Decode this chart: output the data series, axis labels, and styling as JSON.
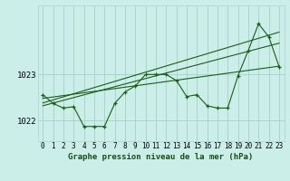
{
  "title": "Graphe pression niveau de la mer (hPa)",
  "bg_color": "#cceee8",
  "grid_color": "#aad4ce",
  "line_color": "#1a5c1a",
  "x_labels": [
    "0",
    "1",
    "2",
    "3",
    "4",
    "5",
    "6",
    "7",
    "8",
    "9",
    "10",
    "11",
    "12",
    "13",
    "14",
    "15",
    "16",
    "17",
    "18",
    "19",
    "20",
    "21",
    "22",
    "23"
  ],
  "y_ticks": [
    1022,
    1023
  ],
  "y_min": 1021.55,
  "y_max": 1024.5,
  "main_line": [
    1022.56,
    1022.37,
    1022.27,
    1022.3,
    1021.87,
    1021.87,
    1021.87,
    1022.37,
    1022.62,
    1022.75,
    1023.0,
    1023.0,
    1023.0,
    1022.87,
    1022.52,
    1022.56,
    1022.32,
    1022.27,
    1022.27,
    1022.97,
    1023.52,
    1024.1,
    1023.82,
    1023.17
  ],
  "trend_line1": [
    [
      0,
      1022.48
    ],
    [
      23,
      1023.18
    ]
  ],
  "trend_line2": [
    [
      0,
      1022.38
    ],
    [
      23,
      1023.92
    ]
  ],
  "trend_line3": [
    [
      0,
      1022.32
    ],
    [
      23,
      1023.68
    ]
  ],
  "title_fontsize": 6.5,
  "tick_fontsize": 5.5,
  "ytick_fontsize": 6.5
}
